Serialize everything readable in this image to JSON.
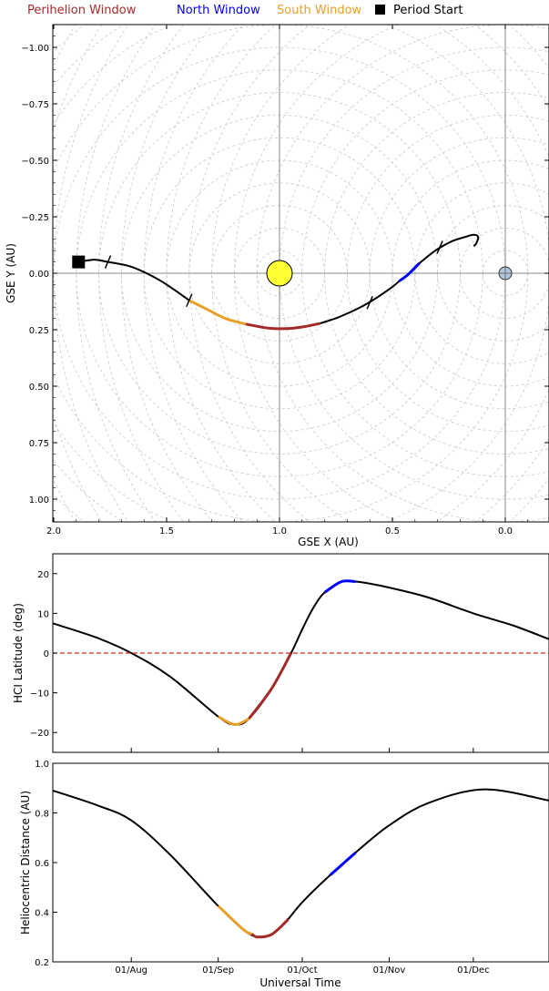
{
  "legend": {
    "perihelion": "Perihelion Window",
    "north": "North Window",
    "south": "South Window",
    "start": "Period Start"
  },
  "colors": {
    "perihelion": "#a52a2a",
    "north": "#0000ff",
    "south": "#e8a02a",
    "default": "#000000",
    "sun": "#ffff33",
    "earth": "#b0c8dd",
    "zero_line": "#d62728"
  },
  "chart_data": [
    {
      "type": "line",
      "xlabel": "GSE X (AU)",
      "ylabel": "GSE Y (AU)",
      "xlim": [
        2.0,
        -0.2
      ],
      "ylim": [
        -1.1,
        1.1
      ],
      "x_ticks": [
        "2.0",
        "1.5",
        "1.0",
        "0.5",
        "0.0"
      ],
      "y_ticks": [
        "−1.00",
        "−0.75",
        "−0.50",
        "−0.25",
        "0.00",
        "0.25",
        "0.50",
        "0.75",
        "1.00"
      ],
      "grid": "concentric circles around Sun (1,0) and Earth (0,0)",
      "sun_position": [
        1.0,
        0.0
      ],
      "earth_position": [
        0.0,
        0.0
      ],
      "period_start": [
        1.89,
        -0.05
      ],
      "path_black_1": [
        [
          1.89,
          -0.05
        ],
        [
          1.82,
          -0.06
        ],
        [
          1.76,
          -0.05
        ],
        [
          1.66,
          -0.03
        ],
        [
          1.55,
          0.02
        ],
        [
          1.47,
          0.07
        ],
        [
          1.4,
          0.12
        ]
      ],
      "path_south": [
        [
          1.4,
          0.12
        ],
        [
          1.32,
          0.16
        ],
        [
          1.24,
          0.2
        ],
        [
          1.15,
          0.225
        ]
      ],
      "path_perihelion": [
        [
          1.15,
          0.225
        ],
        [
          1.05,
          0.243
        ],
        [
          0.97,
          0.245
        ],
        [
          0.9,
          0.238
        ],
        [
          0.82,
          0.222
        ]
      ],
      "path_black_2": [
        [
          0.82,
          0.222
        ],
        [
          0.74,
          0.195
        ],
        [
          0.65,
          0.155
        ],
        [
          0.58,
          0.115
        ],
        [
          0.5,
          0.06
        ],
        [
          0.47,
          0.035
        ]
      ],
      "path_north": [
        [
          0.47,
          0.035
        ],
        [
          0.43,
          0.005
        ],
        [
          0.38,
          -0.045
        ]
      ],
      "path_black_3": [
        [
          0.38,
          -0.045
        ],
        [
          0.31,
          -0.1
        ],
        [
          0.24,
          -0.14
        ],
        [
          0.18,
          -0.16
        ],
        [
          0.14,
          -0.17
        ],
        [
          0.12,
          -0.16
        ],
        [
          0.13,
          -0.13
        ],
        [
          0.14,
          -0.12
        ]
      ],
      "ticks_along_path": [
        [
          1.76,
          -0.05
        ],
        [
          1.4,
          0.12
        ],
        [
          0.6,
          0.13
        ],
        [
          0.29,
          -0.115
        ]
      ]
    },
    {
      "type": "line",
      "xlabel": "",
      "ylabel": "HCI Latitude (deg)",
      "ylim": [
        -25,
        25
      ],
      "y_ticks": [
        "−20",
        "−10",
        "0",
        "10",
        "20"
      ],
      "x_ticks": [],
      "x": [
        "2024-07-04",
        "2024-07-20",
        "2024-08-01",
        "2024-08-15",
        "2024-09-01",
        "2024-09-07",
        "2024-09-12",
        "2024-09-20",
        "2024-09-27",
        "2024-10-01",
        "2024-10-05",
        "2024-10-09",
        "2024-10-15",
        "2024-10-20",
        "2024-10-25",
        "2024-11-01",
        "2024-11-15",
        "2024-12-01",
        "2024-12-15",
        "2024-12-28"
      ],
      "values": [
        7.5,
        3.8,
        0,
        -6,
        -16,
        -18,
        -16.5,
        -9,
        0,
        6,
        11.5,
        15.3,
        18,
        18,
        17.5,
        16.5,
        14,
        10,
        7,
        3.5
      ],
      "windows": {
        "south": [
          "2024-09-01",
          "2024-09-12"
        ],
        "perihelion": [
          "2024-09-12",
          "2024-09-27"
        ],
        "north": [
          "2024-10-09",
          "2024-10-20"
        ]
      },
      "zero_line": true
    },
    {
      "type": "line",
      "xlabel": "Universal Time",
      "ylabel": "Heliocentric Distance (AU)",
      "ylim": [
        0.2,
        1.0
      ],
      "y_ticks": [
        "0.2",
        "0.4",
        "0.6",
        "0.8",
        "1.0"
      ],
      "x_ticks": [
        "01/Aug",
        "01/Sep",
        "01/Oct",
        "01/Nov",
        "01/Dec"
      ],
      "x": [
        "2024-07-04",
        "2024-07-20",
        "2024-08-01",
        "2024-08-15",
        "2024-09-01",
        "2024-09-10",
        "2024-09-15",
        "2024-09-20",
        "2024-09-25",
        "2024-10-01",
        "2024-10-10",
        "2024-10-20",
        "2024-11-01",
        "2024-11-15",
        "2024-12-05",
        "2024-12-28"
      ],
      "values": [
        0.89,
        0.83,
        0.77,
        0.63,
        0.425,
        0.33,
        0.3,
        0.31,
        0.36,
        0.44,
        0.54,
        0.64,
        0.75,
        0.84,
        0.895,
        0.85
      ],
      "windows": {
        "south": [
          "2024-09-01",
          "2024-09-13"
        ],
        "perihelion": [
          "2024-09-13",
          "2024-09-26"
        ],
        "north": [
          "2024-10-11",
          "2024-10-20"
        ]
      }
    }
  ]
}
